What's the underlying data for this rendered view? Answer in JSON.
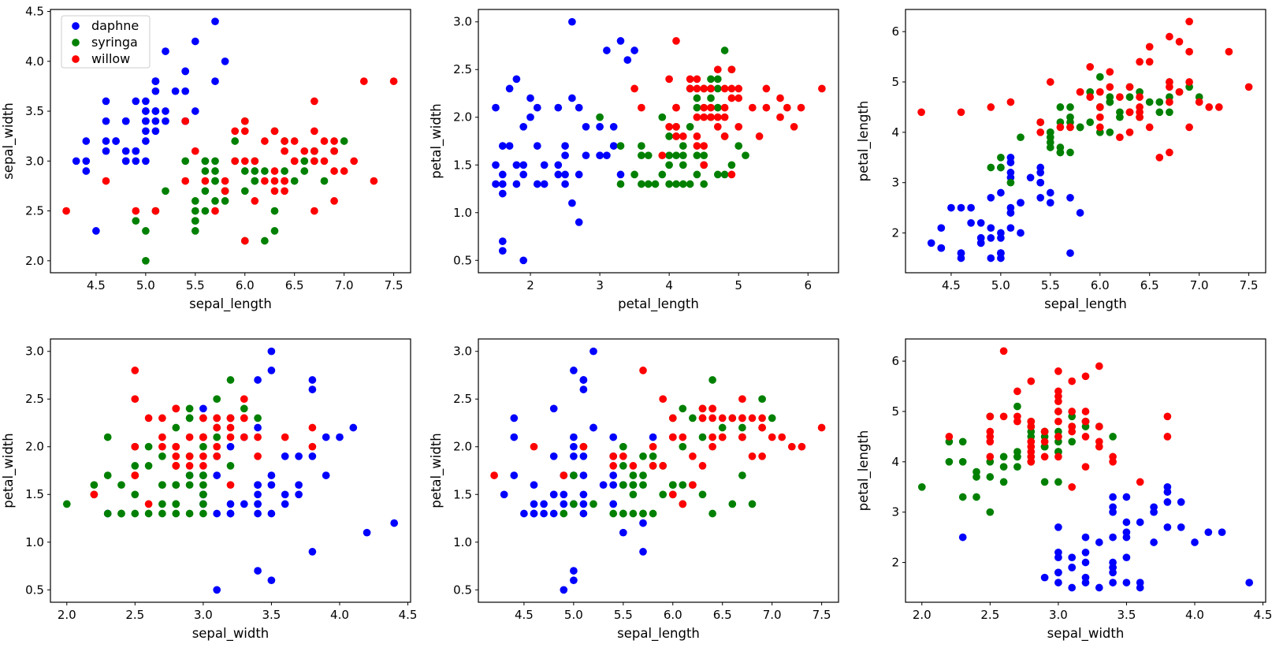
{
  "figure": {
    "background": "#ffffff",
    "marker_radius": 4.85,
    "tick_font_size": 15,
    "label_font_size": 16.5,
    "legend_font_size": 16
  },
  "chart_data": {
    "type": "scatter",
    "columns": [
      "sepal_length",
      "sepal_width",
      "petal_length",
      "petal_width"
    ],
    "legend": {
      "position": "upper-left",
      "entries": [
        "daphne",
        "syringa",
        "willow"
      ]
    },
    "series": [
      {
        "name": "daphne",
        "color": "#0000ff",
        "points": [
          [
            5.1,
            3.5,
            2.5,
            1.7
          ],
          [
            4.9,
            3.0,
            2.7,
            1.4
          ],
          [
            4.7,
            3.2,
            2.2,
            1.3
          ],
          [
            4.6,
            3.1,
            1.5,
            1.3
          ],
          [
            5.0,
            3.6,
            2.8,
            1.9
          ],
          [
            5.4,
            3.9,
            3.2,
            1.7
          ],
          [
            4.6,
            3.4,
            2.5,
            1.6
          ],
          [
            5.0,
            3.4,
            1.6,
            0.7
          ],
          [
            4.4,
            2.9,
            1.7,
            1.7
          ],
          [
            4.9,
            3.1,
            1.9,
            0.5
          ],
          [
            5.4,
            3.7,
            3.0,
            1.9
          ],
          [
            4.8,
            3.4,
            1.8,
            1.3
          ],
          [
            4.8,
            3.0,
            2.2,
            1.5
          ],
          [
            4.3,
            3.0,
            1.8,
            1.5
          ],
          [
            5.8,
            4.0,
            2.4,
            2.1
          ],
          [
            5.7,
            4.4,
            1.6,
            1.2
          ],
          [
            5.4,
            3.9,
            2.7,
            2.1
          ],
          [
            5.1,
            3.5,
            2.1,
            1.3
          ],
          [
            5.7,
            3.8,
            2.7,
            0.9
          ],
          [
            5.1,
            3.8,
            3.4,
            2.6
          ],
          [
            5.4,
            3.4,
            3.3,
            1.4
          ],
          [
            5.1,
            3.7,
            2.4,
            1.5
          ],
          [
            4.6,
            3.6,
            1.6,
            1.4
          ],
          [
            5.1,
            3.3,
            2.4,
            1.4
          ],
          [
            4.8,
            3.4,
            1.9,
            1.5
          ],
          [
            5.0,
            3.0,
            1.6,
            1.7
          ],
          [
            5.0,
            3.4,
            1.9,
            1.4
          ],
          [
            5.2,
            3.5,
            2.6,
            3.0
          ],
          [
            5.2,
            3.4,
            2.0,
            2.2
          ],
          [
            4.7,
            3.2,
            2.5,
            1.4
          ],
          [
            4.8,
            3.1,
            1.9,
            1.9
          ],
          [
            5.4,
            3.4,
            3.0,
            1.6
          ],
          [
            5.2,
            4.1,
            2.6,
            2.2
          ],
          [
            5.5,
            4.2,
            2.6,
            1.1
          ],
          [
            4.9,
            3.1,
            2.1,
            1.7
          ],
          [
            5.0,
            3.2,
            2.0,
            2.0
          ],
          [
            5.5,
            3.5,
            2.8,
            1.6
          ],
          [
            4.9,
            3.6,
            1.5,
            1.5
          ],
          [
            4.4,
            3.0,
            2.1,
            2.1
          ],
          [
            5.1,
            3.4,
            3.1,
            2.7
          ],
          [
            5.0,
            3.5,
            1.6,
            0.6
          ],
          [
            4.5,
            2.3,
            2.5,
            1.3
          ],
          [
            4.4,
            3.2,
            1.7,
            2.3
          ],
          [
            5.0,
            3.5,
            3.3,
            2.8
          ],
          [
            5.1,
            3.8,
            3.5,
            2.7
          ],
          [
            4.8,
            3.0,
            1.8,
            2.4
          ],
          [
            5.1,
            3.8,
            3.2,
            1.9
          ],
          [
            4.6,
            3.2,
            1.6,
            1.3
          ],
          [
            5.3,
            3.7,
            3.1,
            1.6
          ],
          [
            5.0,
            3.3,
            1.5,
            2.1
          ]
        ]
      },
      {
        "name": "syringa",
        "color": "#008000",
        "points": [
          [
            7.0,
            3.2,
            4.7,
            2.3
          ],
          [
            6.4,
            3.2,
            4.8,
            2.7
          ],
          [
            6.9,
            3.1,
            4.9,
            2.5
          ],
          [
            5.5,
            2.3,
            4.0,
            1.3
          ],
          [
            6.5,
            2.8,
            4.6,
            2.2
          ],
          [
            5.7,
            2.8,
            4.5,
            1.3
          ],
          [
            6.3,
            3.3,
            4.7,
            2.4
          ],
          [
            4.9,
            2.4,
            3.3,
            1.3
          ],
          [
            6.6,
            2.9,
            4.6,
            2.3
          ],
          [
            5.2,
            2.7,
            3.9,
            1.4
          ],
          [
            5.0,
            2.0,
            3.5,
            1.4
          ],
          [
            5.9,
            3.0,
            4.2,
            1.5
          ],
          [
            6.0,
            2.2,
            4.0,
            1.5
          ],
          [
            6.1,
            2.9,
            4.6,
            2.4
          ],
          [
            5.6,
            2.9,
            3.6,
            1.7
          ],
          [
            6.7,
            3.1,
            4.4,
            2.2
          ],
          [
            5.6,
            3.0,
            4.5,
            1.5
          ],
          [
            5.8,
            2.7,
            4.1,
            1.9
          ],
          [
            6.2,
            2.2,
            4.4,
            1.6
          ],
          [
            5.6,
            2.5,
            3.7,
            1.3
          ],
          [
            5.9,
            3.2,
            4.8,
            1.8
          ],
          [
            6.1,
            2.8,
            4.0,
            1.6
          ],
          [
            6.3,
            2.5,
            4.9,
            1.5
          ],
          [
            6.1,
            2.8,
            4.7,
            1.4
          ],
          [
            6.4,
            2.9,
            4.3,
            1.3
          ],
          [
            6.6,
            3.0,
            4.4,
            1.4
          ],
          [
            6.8,
            2.8,
            4.8,
            1.4
          ],
          [
            6.7,
            3.0,
            5.0,
            1.7
          ],
          [
            6.0,
            2.9,
            4.5,
            1.6
          ],
          [
            5.7,
            2.6,
            3.6,
            1.3
          ],
          [
            5.5,
            2.4,
            3.8,
            1.3
          ],
          [
            5.5,
            2.4,
            3.7,
            1.6
          ],
          [
            5.8,
            2.7,
            4.1,
            1.3
          ],
          [
            6.0,
            2.7,
            5.1,
            1.6
          ],
          [
            5.4,
            3.0,
            4.2,
            1.3
          ],
          [
            6.0,
            3.4,
            4.5,
            2.3
          ],
          [
            6.7,
            3.1,
            4.7,
            2.1
          ],
          [
            6.3,
            2.3,
            4.4,
            2.1
          ],
          [
            5.6,
            3.0,
            3.6,
            1.6
          ],
          [
            5.5,
            2.5,
            4.0,
            1.8
          ],
          [
            5.5,
            2.6,
            3.9,
            2.0
          ],
          [
            6.1,
            3.0,
            4.6,
            2.0
          ],
          [
            5.8,
            2.6,
            4.1,
            1.8
          ],
          [
            5.0,
            2.3,
            3.3,
            1.7
          ],
          [
            5.6,
            2.7,
            4.2,
            1.6
          ],
          [
            5.7,
            3.0,
            4.2,
            1.7
          ],
          [
            5.7,
            2.9,
            4.3,
            1.9
          ],
          [
            6.2,
            2.9,
            4.3,
            2.3
          ],
          [
            5.1,
            2.5,
            3.0,
            2.0
          ],
          [
            5.7,
            2.8,
            4.1,
            1.6
          ]
        ]
      },
      {
        "name": "willow",
        "color": "#ff0000",
        "points": [
          [
            6.3,
            3.3,
            4.4,
            2.3
          ],
          [
            5.8,
            2.7,
            4.8,
            2.0
          ],
          [
            7.1,
            3.0,
            4.5,
            2.1
          ],
          [
            6.3,
            2.9,
            4.4,
            1.8
          ],
          [
            6.5,
            3.0,
            4.1,
            2.1
          ],
          [
            6.9,
            2.9,
            4.1,
            1.9
          ],
          [
            4.9,
            2.5,
            4.5,
            1.7
          ],
          [
            7.3,
            2.8,
            5.6,
            2.0
          ],
          [
            6.7,
            2.5,
            4.9,
            2.5
          ],
          [
            6.7,
            3.6,
            3.6,
            2.1
          ],
          [
            6.5,
            3.2,
            5.7,
            2.1
          ],
          [
            6.4,
            2.7,
            5.4,
            2.1
          ],
          [
            6.8,
            3.0,
            5.8,
            1.9
          ],
          [
            5.7,
            2.5,
            4.1,
            2.8
          ],
          [
            5.8,
            2.8,
            4.8,
            1.8
          ],
          [
            6.4,
            3.2,
            4.5,
            2.3
          ],
          [
            6.5,
            3.0,
            5.4,
            2.3
          ],
          [
            7.2,
            3.8,
            4.5,
            2.0
          ],
          [
            4.2,
            2.5,
            4.4,
            1.7
          ],
          [
            6.0,
            2.2,
            4.5,
            1.5
          ],
          [
            6.9,
            3.2,
            5.0,
            2.2
          ],
          [
            5.6,
            2.8,
            4.1,
            1.8
          ],
          [
            4.6,
            2.8,
            4.4,
            2.0
          ],
          [
            6.3,
            2.7,
            4.9,
            2.3
          ],
          [
            6.7,
            3.3,
            5.9,
            2.1
          ],
          [
            7.0,
            2.9,
            4.6,
            2.1
          ],
          [
            6.2,
            2.8,
            4.7,
            1.9
          ],
          [
            6.1,
            3.0,
            5.2,
            2.1
          ],
          [
            6.4,
            2.8,
            4.3,
            2.4
          ],
          [
            6.6,
            3.1,
            3.5,
            2.3
          ],
          [
            6.9,
            2.6,
            6.2,
            2.3
          ],
          [
            7.5,
            3.8,
            4.9,
            2.2
          ],
          [
            6.4,
            2.8,
            4.4,
            2.4
          ],
          [
            6.3,
            2.8,
            4.0,
            2.4
          ],
          [
            6.1,
            2.6,
            4.9,
            1.4
          ],
          [
            5.4,
            3.4,
            4.0,
            1.9
          ],
          [
            6.0,
            3.4,
            4.1,
            2.1
          ],
          [
            6.4,
            3.1,
            4.7,
            2.0
          ],
          [
            6.0,
            3.0,
            4.8,
            2.1
          ],
          [
            6.9,
            3.1,
            5.6,
            2.2
          ],
          [
            6.7,
            3.1,
            4.6,
            2.3
          ],
          [
            5.9,
            3.3,
            4.7,
            2.5
          ],
          [
            5.4,
            2.8,
            4.2,
            1.8
          ],
          [
            6.8,
            3.2,
            4.8,
            2.3
          ],
          [
            6.0,
            3.3,
            4.3,
            2.3
          ],
          [
            6.7,
            3.0,
            5.0,
            2.3
          ],
          [
            5.1,
            2.5,
            4.6,
            2.0
          ],
          [
            5.5,
            3.1,
            5.0,
            1.9
          ],
          [
            6.2,
            3.2,
            3.9,
            1.6
          ],
          [
            5.9,
            3.0,
            5.3,
            1.8
          ]
        ]
      }
    ],
    "subplots": [
      {
        "xlabel": "sepal_length",
        "ylabel": "sepal_width",
        "x": 0,
        "y": 1,
        "xlim": [
          4.04,
          7.67
        ],
        "ylim": [
          1.88,
          4.52
        ],
        "xticks": [
          4.5,
          5.0,
          5.5,
          6.0,
          6.5,
          7.0,
          7.5
        ],
        "xfmt": 1,
        "yticks": [
          2.0,
          2.5,
          3.0,
          3.5,
          4.0,
          4.5
        ],
        "yfmt": 1,
        "legend": true
      },
      {
        "xlabel": "petal_length",
        "ylabel": "petal_width",
        "x": 2,
        "y": 3,
        "xlim": [
          1.25,
          6.44
        ],
        "ylim": [
          0.37,
          3.13
        ],
        "xticks": [
          2,
          3,
          4,
          5,
          6
        ],
        "xfmt": 0,
        "yticks": [
          0.5,
          1.0,
          1.5,
          2.0,
          2.5,
          3.0
        ],
        "yfmt": 1,
        "legend": false
      },
      {
        "xlabel": "sepal_length",
        "ylabel": "petal_length",
        "x": 0,
        "y": 2,
        "xlim": [
          4.04,
          7.67
        ],
        "ylim": [
          1.21,
          6.44
        ],
        "xticks": [
          4.5,
          5.0,
          5.5,
          6.0,
          6.5,
          7.0,
          7.5
        ],
        "xfmt": 1,
        "yticks": [
          2,
          3,
          4,
          5,
          6
        ],
        "yfmt": 0,
        "legend": false
      },
      {
        "xlabel": "sepal_width",
        "ylabel": "petal_width",
        "x": 1,
        "y": 3,
        "xlim": [
          1.88,
          4.52
        ],
        "ylim": [
          0.37,
          3.13
        ],
        "xticks": [
          2.0,
          2.5,
          3.0,
          3.5,
          4.0,
          4.5
        ],
        "xfmt": 1,
        "yticks": [
          0.5,
          1.0,
          1.5,
          2.0,
          2.5,
          3.0
        ],
        "yfmt": 1,
        "legend": false
      },
      {
        "xlabel": "sepal_length",
        "ylabel": "petal_width",
        "x": 0,
        "y": 3,
        "xlim": [
          4.04,
          7.67
        ],
        "ylim": [
          0.37,
          3.13
        ],
        "xticks": [
          4.5,
          5.0,
          5.5,
          6.0,
          6.5,
          7.0,
          7.5
        ],
        "xfmt": 1,
        "yticks": [
          0.5,
          1.0,
          1.5,
          2.0,
          2.5,
          3.0
        ],
        "yfmt": 1,
        "legend": false
      },
      {
        "xlabel": "sepal_width",
        "ylabel": "petal_length",
        "x": 1,
        "y": 2,
        "xlim": [
          1.88,
          4.52
        ],
        "ylim": [
          1.21,
          6.44
        ],
        "xticks": [
          2.0,
          2.5,
          3.0,
          3.5,
          4.0,
          4.5
        ],
        "xfmt": 1,
        "yticks": [
          2,
          3,
          4,
          5,
          6
        ],
        "yfmt": 0,
        "legend": false
      }
    ]
  }
}
